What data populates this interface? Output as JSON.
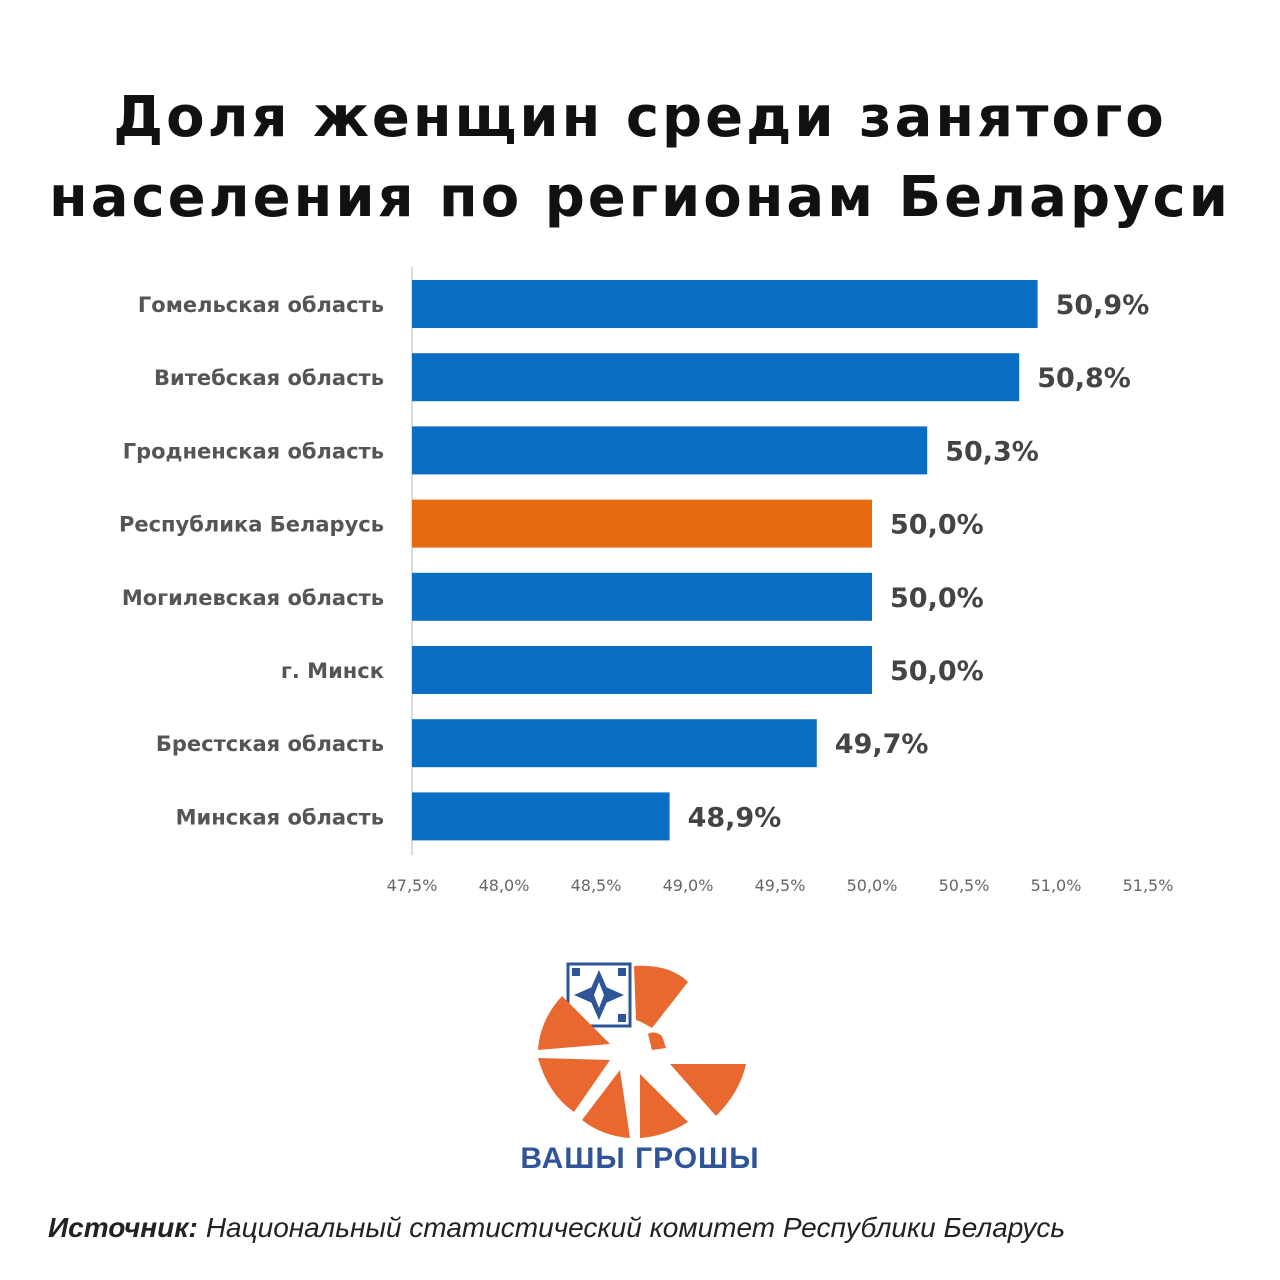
{
  "title": {
    "line1": "Доля женщин среди занятого",
    "line2": "населения по регионам Беларуси"
  },
  "chart_data": {
    "type": "bar",
    "orientation": "horizontal",
    "categories": [
      "Гомельская область",
      "Витебская область",
      "Гродненская область",
      "Республика Беларусь",
      "Могилевская область",
      "г. Минск",
      "Брестская область",
      "Минская область"
    ],
    "values": [
      50.9,
      50.8,
      50.3,
      50.0,
      50.0,
      50.0,
      49.7,
      48.9
    ],
    "value_labels": [
      "50,9%",
      "50,8%",
      "50,3%",
      "50,0%",
      "50,0%",
      "50,0%",
      "49,7%",
      "48,9%"
    ],
    "highlight_index": 3,
    "colors": {
      "default": "#0A6EC4",
      "highlight": "#E66A10"
    },
    "xlim": [
      47.5,
      51.5
    ],
    "x_ticks": [
      47.5,
      48.0,
      48.5,
      49.0,
      49.5,
      50.0,
      50.5,
      51.0,
      51.5
    ],
    "x_tick_labels": [
      "47,5%",
      "48,0%",
      "48,5%",
      "49,0%",
      "49,5%",
      "50,0%",
      "50,5%",
      "51,0%",
      "51,5%"
    ],
    "grid": false,
    "legend": "none"
  },
  "logo": {
    "text": "ВАШЫ ГРОШЫ",
    "colors": {
      "orange": "#E8682F",
      "blue": "#2E5597"
    }
  },
  "source": {
    "label": "Источник:",
    "text": "Национальный статистический комитет Республики Беларусь"
  }
}
